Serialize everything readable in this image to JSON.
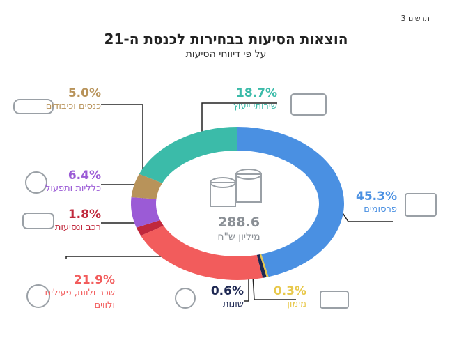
{
  "figure_label": "תרשים 3",
  "chart_data": {
    "type": "donut",
    "title": "הוצאות הסיעות בבחירות לכנסת ה-21",
    "subtitle": "על פי דיווחי הסיעות",
    "total": 288.6,
    "total_unit": "מיליון ש\"ח",
    "categories": [
      "פרסומים",
      "מימון",
      "שונות",
      "שכר ולוות, פעילים ולווים",
      "רכב ונסיעות",
      "כלליות ותפעול",
      "כנסים וכיבודים",
      "שירותי ייעוץ"
    ],
    "values": [
      45.3,
      0.3,
      0.6,
      21.9,
      1.8,
      6.4,
      5.0,
      18.7
    ],
    "value_labels": [
      "45.3%",
      "0.3%",
      "0.6%",
      "21.9%",
      "1.8%",
      "6.4%",
      "5.0%",
      "18.7%"
    ],
    "colors": [
      "#4a90e2",
      "#e8c84a",
      "#1d2752",
      "#f25c5c",
      "#c0283c",
      "#9b5bd6",
      "#b8935a",
      "#3bbba9"
    ]
  }
}
